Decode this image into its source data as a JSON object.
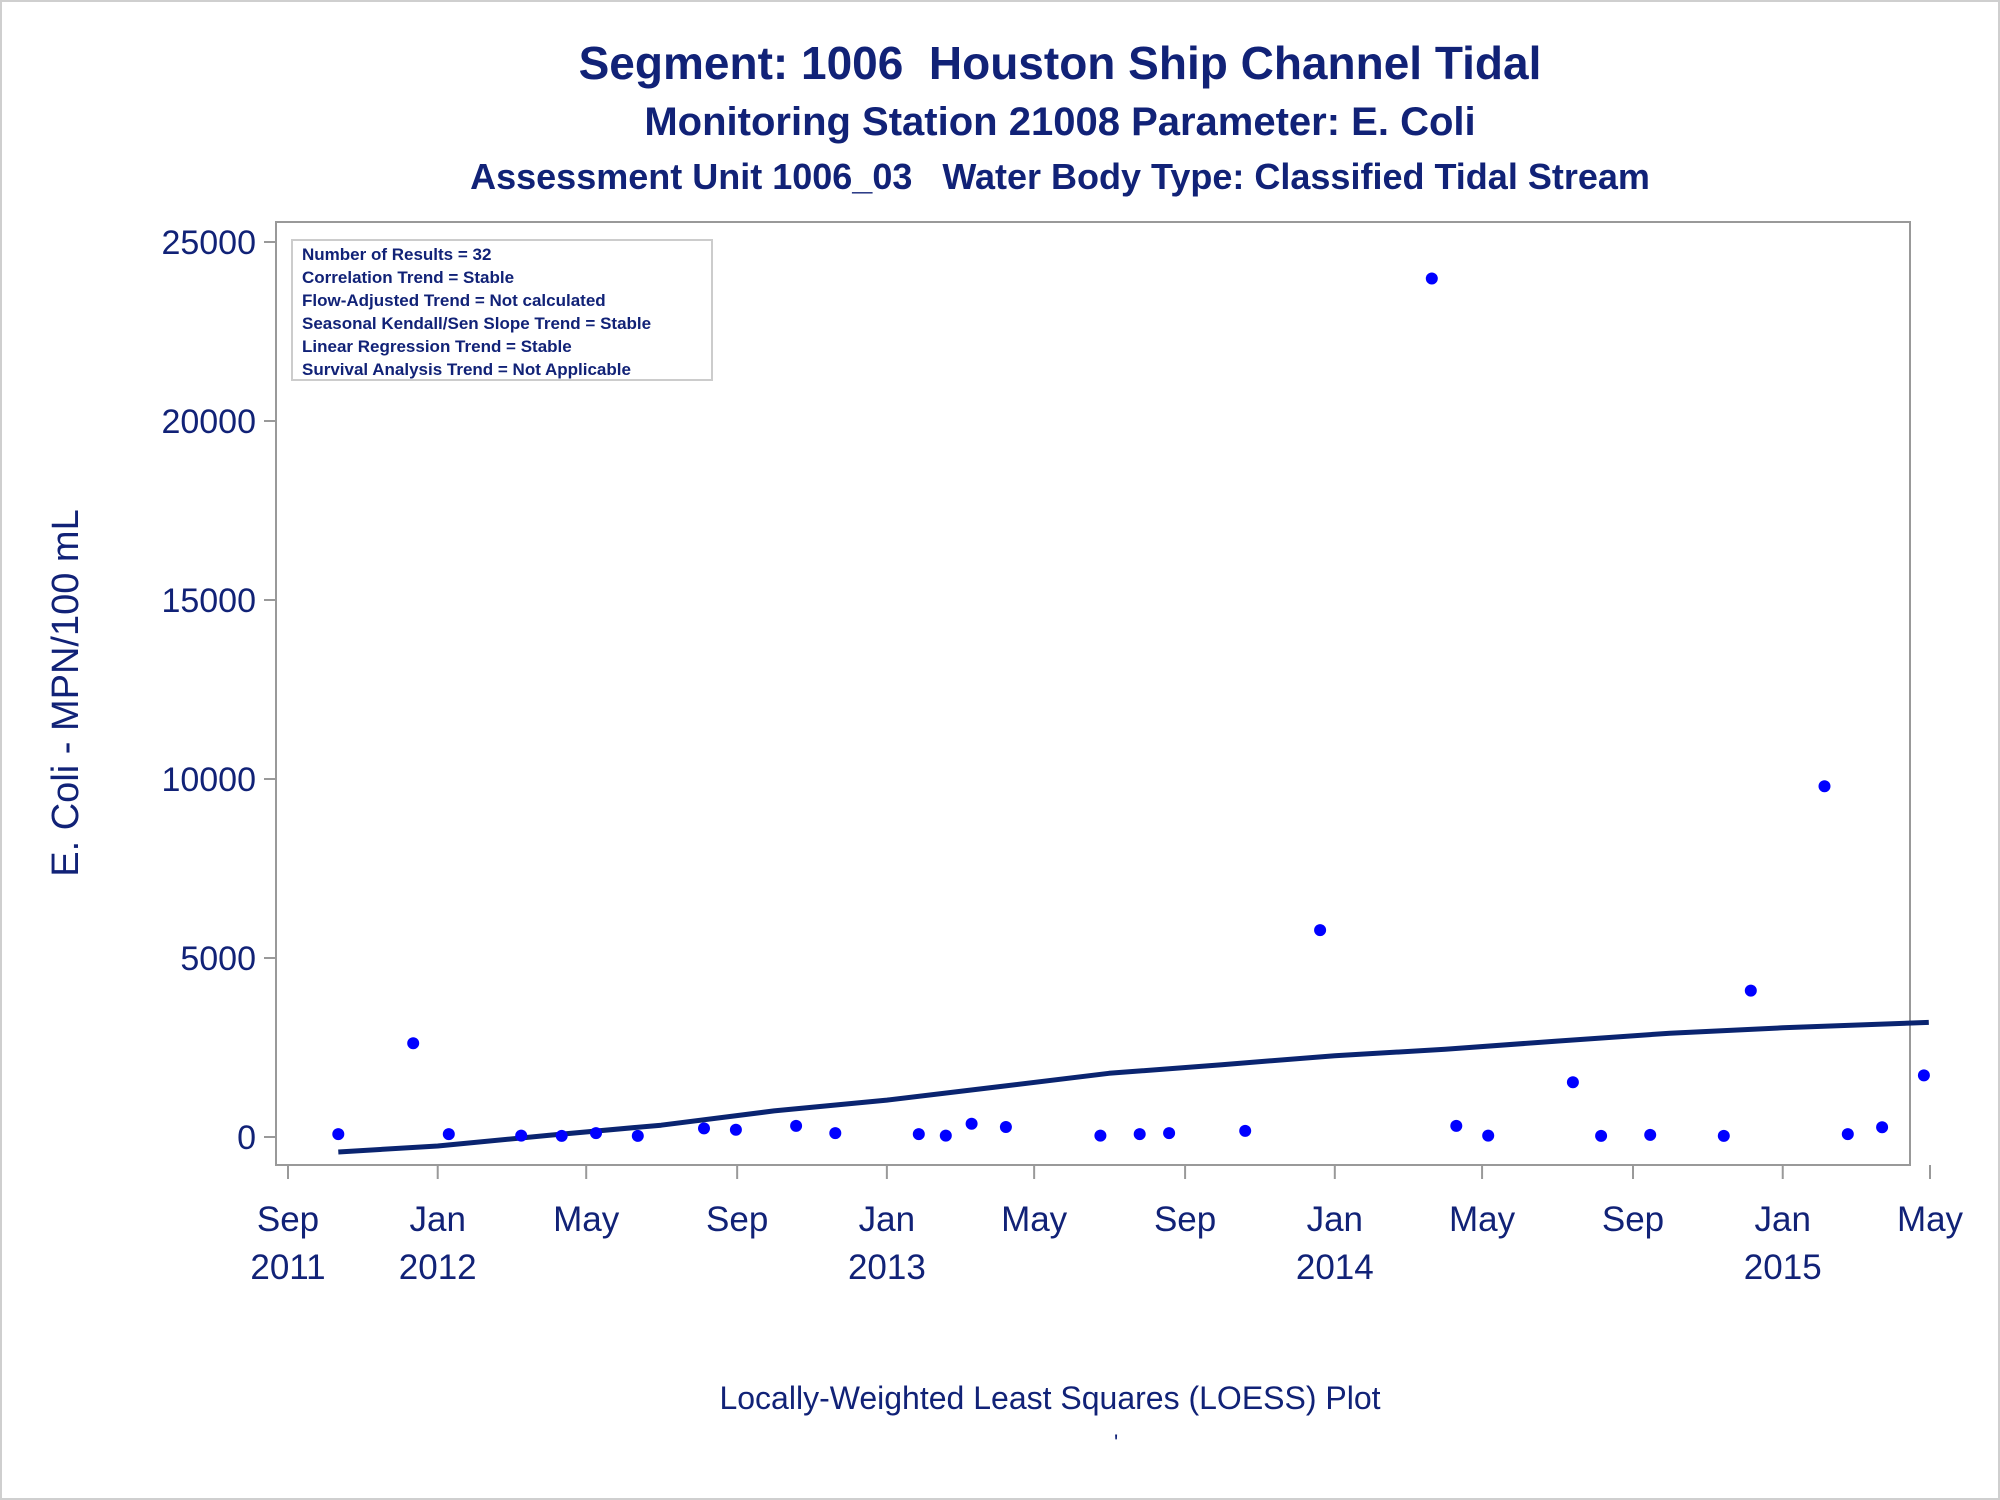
{
  "titles": {
    "line1": "Segment: 1006  Houston Ship Channel Tidal",
    "line2": "Monitoring Station 21008 Parameter: E. Coli",
    "line3": "Assessment Unit 1006_03   Water Body Type: Classified Tidal Stream"
  },
  "stats_box": [
    "Number of Results = 32",
    "Correlation Trend = Stable",
    "Flow-Adjusted Trend = Not calculated",
    "Seasonal Kendall/Sen Slope Trend = Stable",
    "Linear Regression Trend = Stable",
    "Survival Analysis Trend = Not Applicable"
  ],
  "footnote": "Locally-Weighted Least Squares (LOESS) Plot",
  "footmark": "'",
  "colors": {
    "text": "#112277",
    "points": "#0000ff",
    "line": "#0a2470",
    "frame": "#999999"
  },
  "chart_data": {
    "type": "scatter",
    "ylabel": "E. Coli - MPN/100 mL",
    "xlabel": "",
    "ylim": [
      0,
      25000
    ],
    "yticks": [
      0,
      5000,
      10000,
      15000,
      20000,
      25000
    ],
    "xlim": [
      "2011-09-01",
      "2015-05-01"
    ],
    "xticks": [
      {
        "date": "2011-09-01",
        "label": [
          "Sep",
          "2011"
        ]
      },
      {
        "date": "2012-01-01",
        "label": [
          "Jan",
          "2012"
        ]
      },
      {
        "date": "2012-05-01",
        "label": [
          "May",
          ""
        ]
      },
      {
        "date": "2012-09-01",
        "label": [
          "Sep",
          ""
        ]
      },
      {
        "date": "2013-01-01",
        "label": [
          "Jan",
          "2013"
        ]
      },
      {
        "date": "2013-05-01",
        "label": [
          "May",
          ""
        ]
      },
      {
        "date": "2013-09-01",
        "label": [
          "Sep",
          ""
        ]
      },
      {
        "date": "2014-01-01",
        "label": [
          "Jan",
          "2014"
        ]
      },
      {
        "date": "2014-05-01",
        "label": [
          "May",
          ""
        ]
      },
      {
        "date": "2014-09-01",
        "label": [
          "Sep",
          ""
        ]
      },
      {
        "date": "2015-01-01",
        "label": [
          "Jan",
          "2015"
        ]
      },
      {
        "date": "2015-05-01",
        "label": [
          "May",
          ""
        ]
      }
    ],
    "series": [
      {
        "type": "scatter",
        "points": [
          {
            "x": "2011-10-12",
            "y": 80
          },
          {
            "x": "2011-12-12",
            "y": 2620
          },
          {
            "x": "2012-01-10",
            "y": 80
          },
          {
            "x": "2012-03-09",
            "y": 40
          },
          {
            "x": "2012-04-11",
            "y": 30
          },
          {
            "x": "2012-05-09",
            "y": 110
          },
          {
            "x": "2012-06-12",
            "y": 30
          },
          {
            "x": "2012-08-05",
            "y": 240
          },
          {
            "x": "2012-08-31",
            "y": 200
          },
          {
            "x": "2012-10-19",
            "y": 310
          },
          {
            "x": "2012-11-20",
            "y": 110
          },
          {
            "x": "2013-01-27",
            "y": 80
          },
          {
            "x": "2013-02-18",
            "y": 40
          },
          {
            "x": "2013-03-11",
            "y": 370
          },
          {
            "x": "2013-04-08",
            "y": 280
          },
          {
            "x": "2013-06-24",
            "y": 40
          },
          {
            "x": "2013-07-26",
            "y": 80
          },
          {
            "x": "2013-08-19",
            "y": 110
          },
          {
            "x": "2013-10-20",
            "y": 170
          },
          {
            "x": "2013-12-20",
            "y": 5780
          },
          {
            "x": "2014-03-21",
            "y": 23980
          },
          {
            "x": "2014-04-10",
            "y": 310
          },
          {
            "x": "2014-05-06",
            "y": 40
          },
          {
            "x": "2014-07-14",
            "y": 1530
          },
          {
            "x": "2014-08-06",
            "y": 30
          },
          {
            "x": "2014-09-15",
            "y": 60
          },
          {
            "x": "2014-11-14",
            "y": 30
          },
          {
            "x": "2014-12-06",
            "y": 4090
          },
          {
            "x": "2015-02-04",
            "y": 9800
          },
          {
            "x": "2015-02-23",
            "y": 80
          },
          {
            "x": "2015-03-23",
            "y": 270
          },
          {
            "x": "2015-04-26",
            "y": 1720
          }
        ]
      },
      {
        "type": "line",
        "points": [
          {
            "x": "2011-10-12",
            "y": -420
          },
          {
            "x": "2012-01-01",
            "y": -250
          },
          {
            "x": "2012-04-01",
            "y": 50
          },
          {
            "x": "2012-07-01",
            "y": 330
          },
          {
            "x": "2012-10-01",
            "y": 730
          },
          {
            "x": "2013-01-01",
            "y": 1030
          },
          {
            "x": "2013-04-01",
            "y": 1400
          },
          {
            "x": "2013-07-01",
            "y": 1780
          },
          {
            "x": "2013-10-01",
            "y": 2020
          },
          {
            "x": "2014-01-01",
            "y": 2270
          },
          {
            "x": "2014-04-01",
            "y": 2450
          },
          {
            "x": "2014-07-01",
            "y": 2680
          },
          {
            "x": "2014-10-01",
            "y": 2900
          },
          {
            "x": "2015-01-01",
            "y": 3050
          },
          {
            "x": "2015-04-30",
            "y": 3200
          }
        ]
      }
    ]
  }
}
